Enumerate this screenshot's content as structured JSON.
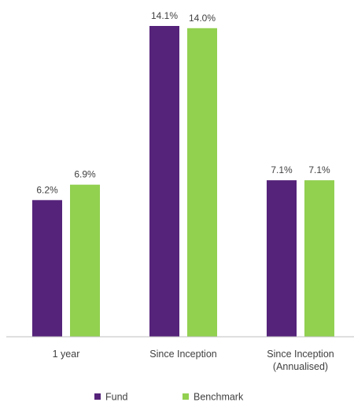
{
  "chart_data": {
    "type": "bar",
    "title": "",
    "xlabel": "",
    "ylabel": "",
    "ylim": [
      0,
      14.1
    ],
    "grid": false,
    "legend_position": "bottom",
    "categories": [
      [
        "1 year"
      ],
      [
        "Since Inception"
      ],
      [
        "Since Inception",
        "(Annualised)"
      ]
    ],
    "series": [
      {
        "name": "Fund",
        "color": "#55237a",
        "values": [
          6.2,
          14.1,
          7.1
        ],
        "labels": [
          "6.2%",
          "14.1%",
          "7.1%"
        ]
      },
      {
        "name": "Benchmark",
        "color": "#92d050",
        "values": [
          6.9,
          14.0,
          7.1
        ],
        "labels": [
          "6.9%",
          "14.0%",
          "7.1%"
        ]
      }
    ]
  }
}
